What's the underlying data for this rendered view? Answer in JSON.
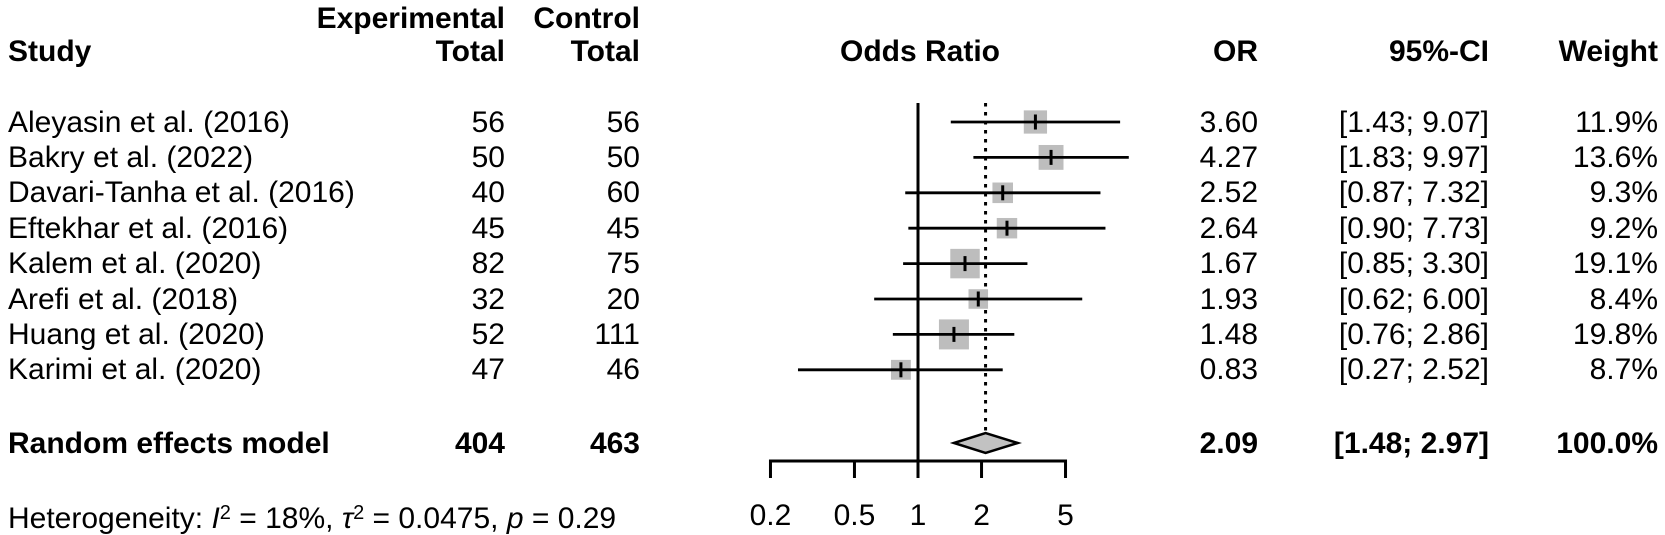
{
  "chart_data": {
    "type": "forest",
    "scale": "log",
    "effect_measure": "Odds Ratio",
    "columns": {
      "study": "Study",
      "experimental_line1": "Experimental",
      "experimental_line2": "Total",
      "control_line1": "Control",
      "control_line2": "Total",
      "plot": "Odds Ratio",
      "or": "OR",
      "ci": "95%-CI",
      "weight": "Weight"
    },
    "studies": [
      {
        "name": "Aleyasin et al. (2016)",
        "experimental_total": "56",
        "control_total": "56",
        "or": 3.6,
        "or_label": "3.60",
        "ci_lower": 1.43,
        "ci_upper": 9.07,
        "ci_label": "[1.43; 9.07]",
        "weight": 11.9,
        "weight_label": "11.9%"
      },
      {
        "name": "Bakry et al. (2022)",
        "experimental_total": "50",
        "control_total": "50",
        "or": 4.27,
        "or_label": "4.27",
        "ci_lower": 1.83,
        "ci_upper": 9.97,
        "ci_label": "[1.83; 9.97]",
        "weight": 13.6,
        "weight_label": "13.6%"
      },
      {
        "name": "Davari-Tanha et al. (2016)",
        "experimental_total": "40",
        "control_total": "60",
        "or": 2.52,
        "or_label": "2.52",
        "ci_lower": 0.87,
        "ci_upper": 7.32,
        "ci_label": "[0.87; 7.32]",
        "weight": 9.3,
        "weight_label": "9.3%"
      },
      {
        "name": "Eftekhar et al. (2016)",
        "experimental_total": "45",
        "control_total": "45",
        "or": 2.64,
        "or_label": "2.64",
        "ci_lower": 0.9,
        "ci_upper": 7.73,
        "ci_label": "[0.90; 7.73]",
        "weight": 9.2,
        "weight_label": "9.2%"
      },
      {
        "name": "Kalem et al. (2020)",
        "experimental_total": "82",
        "control_total": "75",
        "or": 1.67,
        "or_label": "1.67",
        "ci_lower": 0.85,
        "ci_upper": 3.3,
        "ci_label": "[0.85; 3.30]",
        "weight": 19.1,
        "weight_label": "19.1%"
      },
      {
        "name": "Arefi et al. (2018)",
        "experimental_total": "32",
        "control_total": "20",
        "or": 1.93,
        "or_label": "1.93",
        "ci_lower": 0.62,
        "ci_upper": 6.0,
        "ci_label": "[0.62; 6.00]",
        "weight": 8.4,
        "weight_label": "8.4%"
      },
      {
        "name": "Huang et al. (2020)",
        "experimental_total": "52",
        "control_total": "111",
        "or": 1.48,
        "or_label": "1.48",
        "ci_lower": 0.76,
        "ci_upper": 2.86,
        "ci_label": "[0.76; 2.86]",
        "weight": 19.8,
        "weight_label": "19.8%"
      },
      {
        "name": "Karimi et al. (2020)",
        "experimental_total": "47",
        "control_total": "46",
        "or": 0.83,
        "or_label": "0.83",
        "ci_lower": 0.27,
        "ci_upper": 2.52,
        "ci_label": "[0.27; 2.52]",
        "weight": 8.7,
        "weight_label": "8.7%"
      }
    ],
    "summary": {
      "name": "Random effects model",
      "experimental_total": "404",
      "control_total": "463",
      "or": 2.09,
      "or_label": "2.09",
      "ci_lower": 1.48,
      "ci_upper": 2.97,
      "ci_label": "[1.48; 2.97]",
      "weight_label": "100.0%"
    },
    "axis": {
      "ticks": [
        0.2,
        0.5,
        1,
        2,
        5
      ],
      "tick_labels": [
        "0.2",
        "0.5",
        "1",
        "2",
        "5"
      ],
      "reference_value": 1,
      "pooled_line_value": 2.09,
      "xlim": [
        0.2,
        5
      ]
    },
    "heterogeneity_segments": [
      {
        "text": "Heterogeneity: "
      },
      {
        "text": "I",
        "style": "it"
      },
      {
        "text": "2",
        "style": "sup"
      },
      {
        "text": " = 18%, "
      },
      {
        "text": "τ",
        "style": "it"
      },
      {
        "text": "2",
        "style": "sup"
      },
      {
        "text": " = 0.0475, "
      },
      {
        "text": "p",
        "style": "it"
      },
      {
        "text": " = 0.29"
      }
    ],
    "colors": {
      "box_fill": "#bdbdbd",
      "diamond_fill": "#c2c2c2",
      "line": "#000000"
    }
  }
}
